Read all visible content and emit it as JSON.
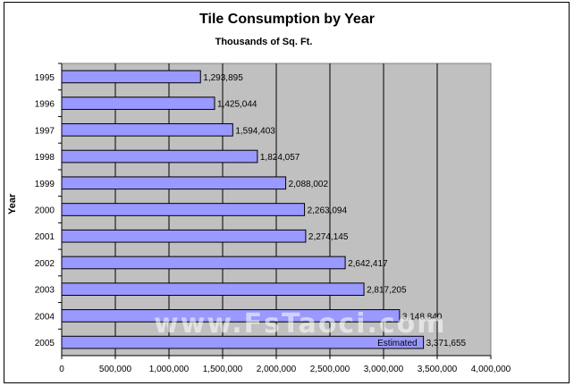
{
  "chart_data": {
    "type": "bar",
    "orientation": "horizontal",
    "title": "Tile Consumption by Year",
    "subtitle": "Thousands of Sq. Ft.",
    "ylabel": "Year",
    "categories": [
      "1995",
      "1996",
      "1997",
      "1998",
      "1999",
      "2000",
      "2001",
      "2002",
      "2003",
      "2004",
      "2005"
    ],
    "values": [
      1293895,
      1425044,
      1594403,
      1824057,
      2088002,
      2263094,
      2274145,
      2642417,
      2817205,
      3148840,
      3371655
    ],
    "value_labels": [
      "1,293,895",
      "1,425,044",
      "1,594,403",
      "1,824,057",
      "2,088,002",
      "2,263,094",
      "2,274,145",
      "2,642,417",
      "2,817,205",
      "3,148,840",
      "3,371,655"
    ],
    "annotations": [
      {
        "category": "2005",
        "text": "Estimated"
      }
    ],
    "xlim": [
      0,
      4000000
    ],
    "xticks": [
      "0",
      "500,000",
      "1,000,000",
      "1,500,000",
      "2,000,000",
      "2,500,000",
      "3,000,000",
      "3,500,000",
      "4,000,000"
    ],
    "grid": true,
    "colors": {
      "bar": "#9999ff",
      "plot_bg": "#c0c0c0",
      "bar_border": "#000000"
    }
  },
  "watermark": "www.FsTaoci.com"
}
